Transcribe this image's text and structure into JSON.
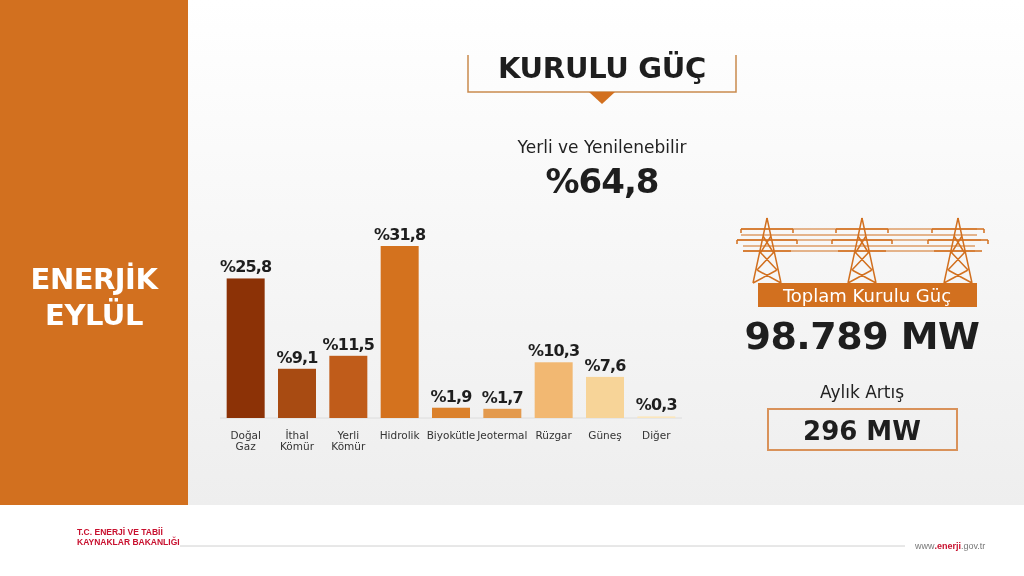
{
  "chart_data": {
    "type": "bar",
    "title": "KURULU GÜÇ",
    "subtitle": "Yerli ve Yenilenebilir",
    "categories": [
      "Doğal Gaz",
      "İthal Kömür",
      "Yerli Kömür",
      "Hidrolik",
      "Biyokütle",
      "Jeotermal",
      "Rüzgar",
      "Güneş",
      "Diğer"
    ],
    "values": [
      25.8,
      9.1,
      11.5,
      31.8,
      1.9,
      1.7,
      10.3,
      7.6,
      0.3
    ],
    "colors": [
      "#8c3206",
      "#a84b12",
      "#c05c1a",
      "#d4721e",
      "#db812c",
      "#e39a4e",
      "#f2b872",
      "#f7d498",
      "#fbe6bc"
    ],
    "value_labels": [
      "%25,8",
      "%9,1",
      "%11,5",
      "%31,8",
      "%1,9",
      "%1,7",
      "%10,3",
      "%7,6",
      "%0,3"
    ],
    "annotations": [
      "%64,8",
      "ENERJİK EYLÜL",
      "Toplam Kurulu Güç",
      "98.789 MW",
      "Aylık Artış",
      "296 MW",
      "T.C. ENERJİ VE TABİİ KAYNAKLAR BAKANLIĞI",
      "www.enerji.gov.tr"
    ]
  }
}
